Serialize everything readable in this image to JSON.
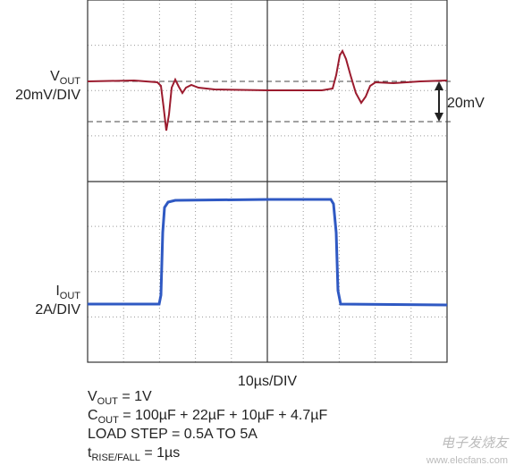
{
  "vout_label": {
    "symbol": "V",
    "subscript": "OUT",
    "scale": "20mV/DIV"
  },
  "iout_label": {
    "symbol": "I",
    "subscript": "OUT",
    "scale": "2A/DIV"
  },
  "annotation": "20mV",
  "time_scale": "10µs/DIV",
  "conditions": [
    {
      "symbol": "V",
      "subscript": "OUT",
      "text": " = 1V"
    },
    {
      "symbol": "C",
      "subscript": "OUT",
      "text": " = 100µF + 22µF + 10µF + 4.7µF"
    },
    {
      "text": "LOAD STEP = 0.5A TO 5A"
    },
    {
      "symbol": "t",
      "subscript": "RISE/FALL",
      "text": " = 1µs"
    }
  ],
  "watermark": {
    "brand": "电子发烧友",
    "url": "www.elecfans.com"
  }
}
